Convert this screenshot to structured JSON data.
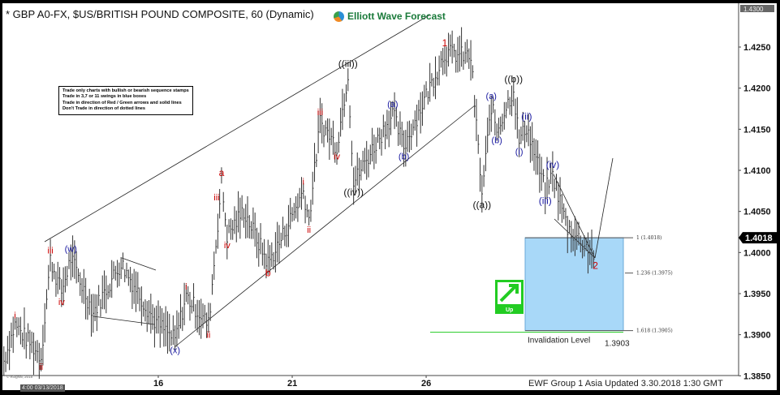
{
  "header": {
    "title": "* GBP A0-FX, $US/BRITISH POUND COMPOSITE, 60 (Dynamic)",
    "brand": "Elliott Wave Forecast"
  },
  "rules": [
    "Trade only charts with bullish or bearish sequence stamps",
    "Trade in 3,7 or 11 swings in blue boxes",
    "Trade in direction of Red / Green arrows and solid lines",
    "Don't Trade in direction of dotted lines"
  ],
  "footer": "EWF Group 1 Asia Updated 3.30.2018 1:30 GMT",
  "esignal": "© eSignal, 2018",
  "date_tag": "4:00 03/13/2018",
  "chart_data": {
    "type": "ohlc-bar",
    "interval": "60 min",
    "ylim": [
      1.3835,
      1.43
    ],
    "y_ticks": [
      "1.4250",
      "1.4200",
      "1.4150",
      "1.4100",
      "1.4050",
      "1.4000",
      "1.3950",
      "1.3900",
      "1.3850"
    ],
    "x_ticks": [
      {
        "label": "16",
        "date": "2018-03-16 00:00"
      },
      {
        "label": "21",
        "date": "2018-03-21 00:00"
      },
      {
        "label": "26",
        "date": "2018-03-26 00:00"
      }
    ],
    "last_price": "1.4018",
    "top_price_tag": "1.4300",
    "grid": false,
    "colors": {
      "bars": "#333333",
      "red_label": "#cc0000",
      "blue_label": "#1a1aa0",
      "black_label": "#111111",
      "blue_box": "#a8d8f8",
      "green": "#22cc22"
    },
    "waves": [
      {
        "date": "2018-03-12 13:00",
        "price": 1.3868
      },
      {
        "date": "2018-03-12 19:00",
        "price": 1.3912,
        "label": "i",
        "color": "red",
        "pos": "above"
      },
      {
        "date": "2018-03-13 09:00",
        "price": 1.3873,
        "label": "ii",
        "color": "red",
        "pos": "below"
      },
      {
        "date": "2018-03-13 14:00",
        "price": 1.3991,
        "label": "iii",
        "color": "red",
        "pos": "above"
      },
      {
        "date": "2018-03-13 20:00",
        "price": 1.3952,
        "label": "iv",
        "color": "red",
        "pos": "below"
      },
      {
        "date": "2018-03-14 01:00",
        "price": 1.3993,
        "label": "(w)",
        "color": "blue",
        "pos": "above"
      },
      {
        "date": "2018-03-14 13:00",
        "price": 1.3927
      },
      {
        "date": "2018-03-15 04:00",
        "price": 1.3987
      },
      {
        "date": "2018-03-15 22:00",
        "price": 1.3917
      },
      {
        "date": "2018-03-16 09:00",
        "price": 1.3893,
        "label": "(x)",
        "color": "blue",
        "pos": "below"
      },
      {
        "date": "2018-03-16 15:00",
        "price": 1.3947,
        "label": "i",
        "color": "red",
        "pos": "above"
      },
      {
        "date": "2018-03-19 03:00",
        "price": 1.3912,
        "label": "ii",
        "color": "red",
        "pos": "below"
      },
      {
        "date": "2018-03-19 10:00",
        "price": 1.4085,
        "label": "a",
        "color": "red",
        "pos": "above",
        "label2": "iii"
      },
      {
        "date": "2018-03-19 13:00",
        "price": 1.4021,
        "label": "iv",
        "color": "red",
        "pos": "below"
      },
      {
        "date": "2018-03-19 22:00",
        "price": 1.4051
      },
      {
        "date": "2018-03-20 11:00",
        "price": 1.3987,
        "label": "b",
        "color": "red",
        "pos": "below"
      },
      {
        "date": "2018-03-20 17:00",
        "price": 1.4011
      },
      {
        "date": "2018-03-21 06:00",
        "price": 1.4075,
        "label": "i",
        "color": "red",
        "pos": "above"
      },
      {
        "date": "2018-03-21 09:00",
        "price": 1.404,
        "label": "ii",
        "color": "red",
        "pos": "below"
      },
      {
        "date": "2018-03-21 15:00",
        "price": 1.4159,
        "label": "iii",
        "color": "red",
        "pos": "above"
      },
      {
        "date": "2018-03-22 00:00",
        "price": 1.4129,
        "label": "iv",
        "color": "red",
        "pos": "below"
      },
      {
        "date": "2018-03-22 06:00",
        "price": 1.4218,
        "label": "((iii))",
        "color": "black",
        "pos": "above"
      },
      {
        "date": "2018-03-22 09:00",
        "price": 1.4085,
        "label": "((iv))",
        "color": "black",
        "pos": "below"
      },
      {
        "date": "2018-03-23 06:00",
        "price": 1.4169,
        "label": "(a)",
        "color": "blue",
        "pos": "above"
      },
      {
        "date": "2018-03-23 12:00",
        "price": 1.4129,
        "label": "(b)",
        "color": "blue",
        "pos": "below"
      },
      {
        "date": "2018-03-26 10:00",
        "price": 1.4243,
        "label": "1",
        "color": "red",
        "pos": "above"
      },
      {
        "date": "2018-03-27 00:00",
        "price": 1.4238
      },
      {
        "date": "2018-03-27 06:00",
        "price": 1.407,
        "label": "((a))",
        "color": "black",
        "pos": "below"
      },
      {
        "date": "2018-03-27 11:00",
        "price": 1.4179,
        "label": "(a)",
        "color": "blue",
        "pos": "above"
      },
      {
        "date": "2018-03-27 14:00",
        "price": 1.4149,
        "label": "(b)",
        "color": "blue",
        "pos": "below"
      },
      {
        "date": "2018-03-27 23:00",
        "price": 1.4199,
        "label": "((b))",
        "color": "black",
        "pos": "above"
      },
      {
        "date": "2018-03-28 02:00",
        "price": 1.4135,
        "label": "(i)",
        "color": "blue",
        "pos": "below"
      },
      {
        "date": "2018-03-28 06:00",
        "price": 1.4154,
        "label": "(ii)",
        "color": "blue",
        "pos": "above"
      },
      {
        "date": "2018-03-28 16:00",
        "price": 1.4075,
        "label": "(iii)",
        "color": "blue",
        "pos": "below"
      },
      {
        "date": "2018-03-28 20:00",
        "price": 1.4095,
        "label": "(iv)",
        "color": "blue",
        "pos": "above"
      },
      {
        "date": "2018-03-29 04:00",
        "price": 1.403
      },
      {
        "date": "2018-03-29 11:00",
        "price": 1.4015
      },
      {
        "date": "2018-03-29 19:00",
        "price": 1.3996,
        "label": "2",
        "color": "red",
        "pos": "below"
      }
    ],
    "fib_levels": [
      {
        "label": "1 (1.4018)",
        "price": 1.4018
      },
      {
        "label": "1.236 (1.3975)",
        "price": 1.3975
      },
      {
        "label": "1.618 (1.3905)",
        "price": 1.3905
      }
    ],
    "blue_box": {
      "from": 1.4018,
      "to": 1.3905
    },
    "invalidation": {
      "label": "Invalidation Level",
      "value": "1.3903",
      "price": 1.3903
    },
    "up_stamp": "Up"
  }
}
